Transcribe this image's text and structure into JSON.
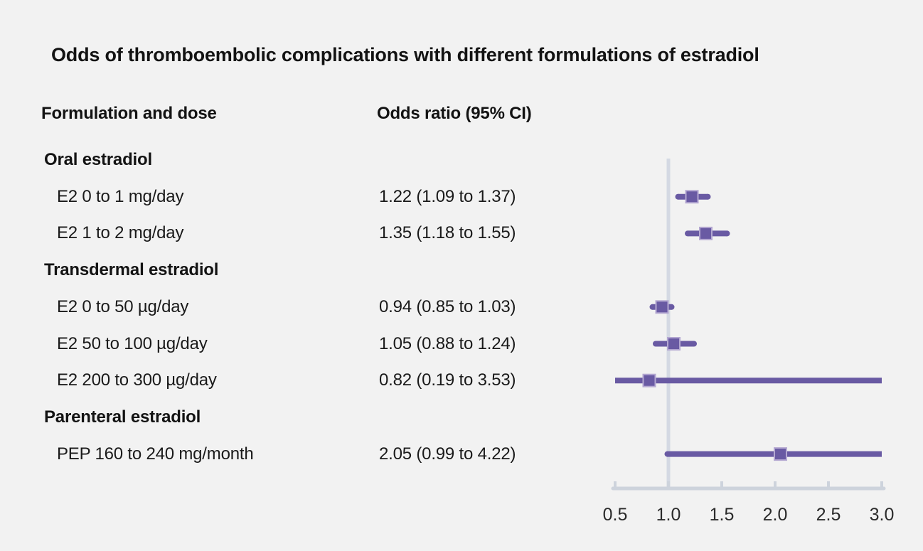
{
  "figure": {
    "title": "Odds of thromboembolic complications with different formulations of estradiol",
    "col_header_left": "Formulation and dose",
    "col_header_right": "Odds ratio (95% CI)"
  },
  "colors": {
    "background": "#f2f2f2",
    "text": "#1a1a1a",
    "ci_line": "#695aa3",
    "marker_fill": "#695aa3",
    "marker_border": "#b3a7d1",
    "reference_line": "#d4d9e3",
    "axis_line": "#cdd3dc",
    "tick_label": "#2b2b2b"
  },
  "chart_data": {
    "type": "forest",
    "title": "Odds of thromboembolic complications with different formulations of estradiol",
    "xlabel": "",
    "legend": "none",
    "grid": false,
    "x_axis": {
      "min": 0.5,
      "max": 3.0,
      "reference_value": 1.0,
      "ticks": [
        0.5,
        1.0,
        1.5,
        2.0,
        2.5,
        3.0
      ],
      "tick_labels": [
        "0.5",
        "1.0",
        "1.5",
        "2.0",
        "2.5",
        "3.0"
      ]
    },
    "rows": [
      {
        "kind": "group",
        "label": "Oral estradiol"
      },
      {
        "kind": "item",
        "label": "E2 0 to 1 mg/day",
        "or_text": "1.22 (1.09 to 1.37)",
        "estimate": 1.22,
        "ci_low": 1.09,
        "ci_high": 1.37
      },
      {
        "kind": "item",
        "label": "E2 1 to 2 mg/day",
        "or_text": "1.35 (1.18 to 1.55)",
        "estimate": 1.35,
        "ci_low": 1.18,
        "ci_high": 1.55
      },
      {
        "kind": "group",
        "label": "Transdermal estradiol"
      },
      {
        "kind": "item",
        "label": "E2 0 to 50 µg/day",
        "or_text": "0.94 (0.85 to 1.03)",
        "estimate": 0.94,
        "ci_low": 0.85,
        "ci_high": 1.03
      },
      {
        "kind": "item",
        "label": "E2 50 to 100 µg/day",
        "or_text": "1.05 (0.88 to 1.24)",
        "estimate": 1.05,
        "ci_low": 0.88,
        "ci_high": 1.24
      },
      {
        "kind": "item",
        "label": "E2 200 to 300 µg/day",
        "or_text": "0.82 (0.19 to 3.53)",
        "estimate": 0.82,
        "ci_low": 0.19,
        "ci_high": 3.53
      },
      {
        "kind": "group",
        "label": "Parenteral estradiol"
      },
      {
        "kind": "item",
        "label": "PEP 160 to 240 mg/month",
        "or_text": "2.05 (0.99 to 4.22)",
        "estimate": 2.05,
        "ci_low": 0.99,
        "ci_high": 4.22
      }
    ]
  }
}
